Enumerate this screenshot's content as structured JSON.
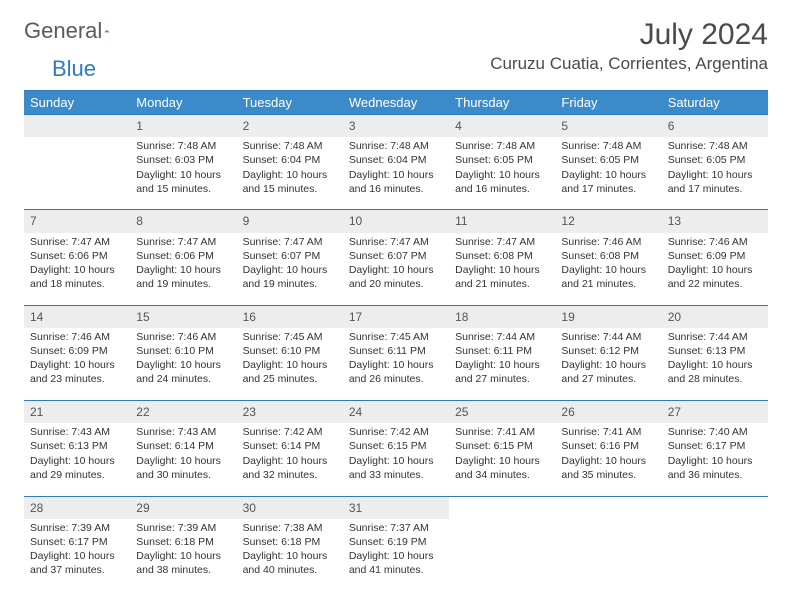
{
  "brand": {
    "text1": "General",
    "text2": "Blue"
  },
  "title": "July 2024",
  "location": "Curuzu Cuatia, Corrientes, Argentina",
  "colors": {
    "header_bg": "#3b8bca",
    "header_border": "#2f7bbf",
    "daynum_bg": "#ededed",
    "text": "#333333",
    "title_text": "#4a4a4a"
  },
  "weekdays": [
    "Sunday",
    "Monday",
    "Tuesday",
    "Wednesday",
    "Thursday",
    "Friday",
    "Saturday"
  ],
  "weeks": [
    [
      null,
      {
        "n": "1",
        "sr": "Sunrise: 7:48 AM",
        "ss": "Sunset: 6:03 PM",
        "d1": "Daylight: 10 hours",
        "d2": "and 15 minutes."
      },
      {
        "n": "2",
        "sr": "Sunrise: 7:48 AM",
        "ss": "Sunset: 6:04 PM",
        "d1": "Daylight: 10 hours",
        "d2": "and 15 minutes."
      },
      {
        "n": "3",
        "sr": "Sunrise: 7:48 AM",
        "ss": "Sunset: 6:04 PM",
        "d1": "Daylight: 10 hours",
        "d2": "and 16 minutes."
      },
      {
        "n": "4",
        "sr": "Sunrise: 7:48 AM",
        "ss": "Sunset: 6:05 PM",
        "d1": "Daylight: 10 hours",
        "d2": "and 16 minutes."
      },
      {
        "n": "5",
        "sr": "Sunrise: 7:48 AM",
        "ss": "Sunset: 6:05 PM",
        "d1": "Daylight: 10 hours",
        "d2": "and 17 minutes."
      },
      {
        "n": "6",
        "sr": "Sunrise: 7:48 AM",
        "ss": "Sunset: 6:05 PM",
        "d1": "Daylight: 10 hours",
        "d2": "and 17 minutes."
      }
    ],
    [
      {
        "n": "7",
        "sr": "Sunrise: 7:47 AM",
        "ss": "Sunset: 6:06 PM",
        "d1": "Daylight: 10 hours",
        "d2": "and 18 minutes."
      },
      {
        "n": "8",
        "sr": "Sunrise: 7:47 AM",
        "ss": "Sunset: 6:06 PM",
        "d1": "Daylight: 10 hours",
        "d2": "and 19 minutes."
      },
      {
        "n": "9",
        "sr": "Sunrise: 7:47 AM",
        "ss": "Sunset: 6:07 PM",
        "d1": "Daylight: 10 hours",
        "d2": "and 19 minutes."
      },
      {
        "n": "10",
        "sr": "Sunrise: 7:47 AM",
        "ss": "Sunset: 6:07 PM",
        "d1": "Daylight: 10 hours",
        "d2": "and 20 minutes."
      },
      {
        "n": "11",
        "sr": "Sunrise: 7:47 AM",
        "ss": "Sunset: 6:08 PM",
        "d1": "Daylight: 10 hours",
        "d2": "and 21 minutes."
      },
      {
        "n": "12",
        "sr": "Sunrise: 7:46 AM",
        "ss": "Sunset: 6:08 PM",
        "d1": "Daylight: 10 hours",
        "d2": "and 21 minutes."
      },
      {
        "n": "13",
        "sr": "Sunrise: 7:46 AM",
        "ss": "Sunset: 6:09 PM",
        "d1": "Daylight: 10 hours",
        "d2": "and 22 minutes."
      }
    ],
    [
      {
        "n": "14",
        "sr": "Sunrise: 7:46 AM",
        "ss": "Sunset: 6:09 PM",
        "d1": "Daylight: 10 hours",
        "d2": "and 23 minutes."
      },
      {
        "n": "15",
        "sr": "Sunrise: 7:46 AM",
        "ss": "Sunset: 6:10 PM",
        "d1": "Daylight: 10 hours",
        "d2": "and 24 minutes."
      },
      {
        "n": "16",
        "sr": "Sunrise: 7:45 AM",
        "ss": "Sunset: 6:10 PM",
        "d1": "Daylight: 10 hours",
        "d2": "and 25 minutes."
      },
      {
        "n": "17",
        "sr": "Sunrise: 7:45 AM",
        "ss": "Sunset: 6:11 PM",
        "d1": "Daylight: 10 hours",
        "d2": "and 26 minutes."
      },
      {
        "n": "18",
        "sr": "Sunrise: 7:44 AM",
        "ss": "Sunset: 6:11 PM",
        "d1": "Daylight: 10 hours",
        "d2": "and 27 minutes."
      },
      {
        "n": "19",
        "sr": "Sunrise: 7:44 AM",
        "ss": "Sunset: 6:12 PM",
        "d1": "Daylight: 10 hours",
        "d2": "and 27 minutes."
      },
      {
        "n": "20",
        "sr": "Sunrise: 7:44 AM",
        "ss": "Sunset: 6:13 PM",
        "d1": "Daylight: 10 hours",
        "d2": "and 28 minutes."
      }
    ],
    [
      {
        "n": "21",
        "sr": "Sunrise: 7:43 AM",
        "ss": "Sunset: 6:13 PM",
        "d1": "Daylight: 10 hours",
        "d2": "and 29 minutes."
      },
      {
        "n": "22",
        "sr": "Sunrise: 7:43 AM",
        "ss": "Sunset: 6:14 PM",
        "d1": "Daylight: 10 hours",
        "d2": "and 30 minutes."
      },
      {
        "n": "23",
        "sr": "Sunrise: 7:42 AM",
        "ss": "Sunset: 6:14 PM",
        "d1": "Daylight: 10 hours",
        "d2": "and 32 minutes."
      },
      {
        "n": "24",
        "sr": "Sunrise: 7:42 AM",
        "ss": "Sunset: 6:15 PM",
        "d1": "Daylight: 10 hours",
        "d2": "and 33 minutes."
      },
      {
        "n": "25",
        "sr": "Sunrise: 7:41 AM",
        "ss": "Sunset: 6:15 PM",
        "d1": "Daylight: 10 hours",
        "d2": "and 34 minutes."
      },
      {
        "n": "26",
        "sr": "Sunrise: 7:41 AM",
        "ss": "Sunset: 6:16 PM",
        "d1": "Daylight: 10 hours",
        "d2": "and 35 minutes."
      },
      {
        "n": "27",
        "sr": "Sunrise: 7:40 AM",
        "ss": "Sunset: 6:17 PM",
        "d1": "Daylight: 10 hours",
        "d2": "and 36 minutes."
      }
    ],
    [
      {
        "n": "28",
        "sr": "Sunrise: 7:39 AM",
        "ss": "Sunset: 6:17 PM",
        "d1": "Daylight: 10 hours",
        "d2": "and 37 minutes."
      },
      {
        "n": "29",
        "sr": "Sunrise: 7:39 AM",
        "ss": "Sunset: 6:18 PM",
        "d1": "Daylight: 10 hours",
        "d2": "and 38 minutes."
      },
      {
        "n": "30",
        "sr": "Sunrise: 7:38 AM",
        "ss": "Sunset: 6:18 PM",
        "d1": "Daylight: 10 hours",
        "d2": "and 40 minutes."
      },
      {
        "n": "31",
        "sr": "Sunrise: 7:37 AM",
        "ss": "Sunset: 6:19 PM",
        "d1": "Daylight: 10 hours",
        "d2": "and 41 minutes."
      },
      null,
      null,
      null
    ]
  ]
}
